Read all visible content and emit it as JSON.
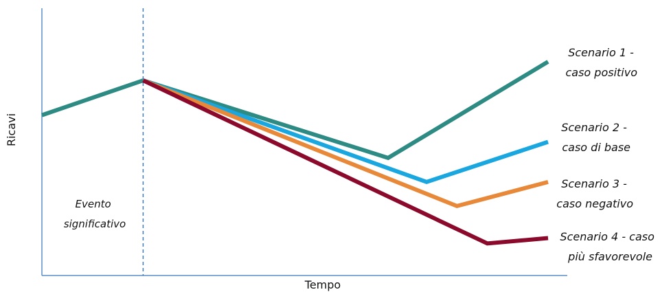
{
  "chart_data": {
    "type": "line",
    "xlabel": "Tempo",
    "ylabel": "Ricavi",
    "event_label": [
      "Evento",
      "significativo"
    ],
    "pre_event": {
      "color": "#2E8B84",
      "points": [
        [
          0,
          60
        ],
        [
          1,
          73
        ]
      ]
    },
    "series": [
      {
        "name": "Scenario 1 - caso positivo",
        "label_lines": [
          "Scenario 1 -",
          "caso positivo"
        ],
        "color": "#2E8B84",
        "points": [
          [
            1,
            73
          ],
          [
            3.42,
            44
          ],
          [
            5,
            80
          ]
        ]
      },
      {
        "name": "Scenario 2 - caso di base",
        "label_lines": [
          "Scenario 2 -",
          "caso di base"
        ],
        "color": "#1AA7E0",
        "points": [
          [
            1,
            73
          ],
          [
            3.8,
            35
          ],
          [
            5,
            50
          ]
        ]
      },
      {
        "name": "Scenario 3 - caso negativo",
        "label_lines": [
          "Scenario 3 -",
          "caso negativo"
        ],
        "color": "#E8893A",
        "points": [
          [
            1,
            73
          ],
          [
            4.1,
            26
          ],
          [
            5,
            35
          ]
        ]
      },
      {
        "name": "Scenario 4 - caso più sfavorevole",
        "label_lines": [
          "Scenario 4 - caso",
          "più sfavorevole"
        ],
        "color": "#8B0A2B",
        "points": [
          [
            1,
            73
          ],
          [
            4.4,
            12
          ],
          [
            5,
            14
          ]
        ]
      }
    ],
    "event_x": 1,
    "xlim": [
      0,
      5
    ],
    "ylim": [
      0,
      100
    ],
    "grid": false,
    "legend": "none"
  }
}
